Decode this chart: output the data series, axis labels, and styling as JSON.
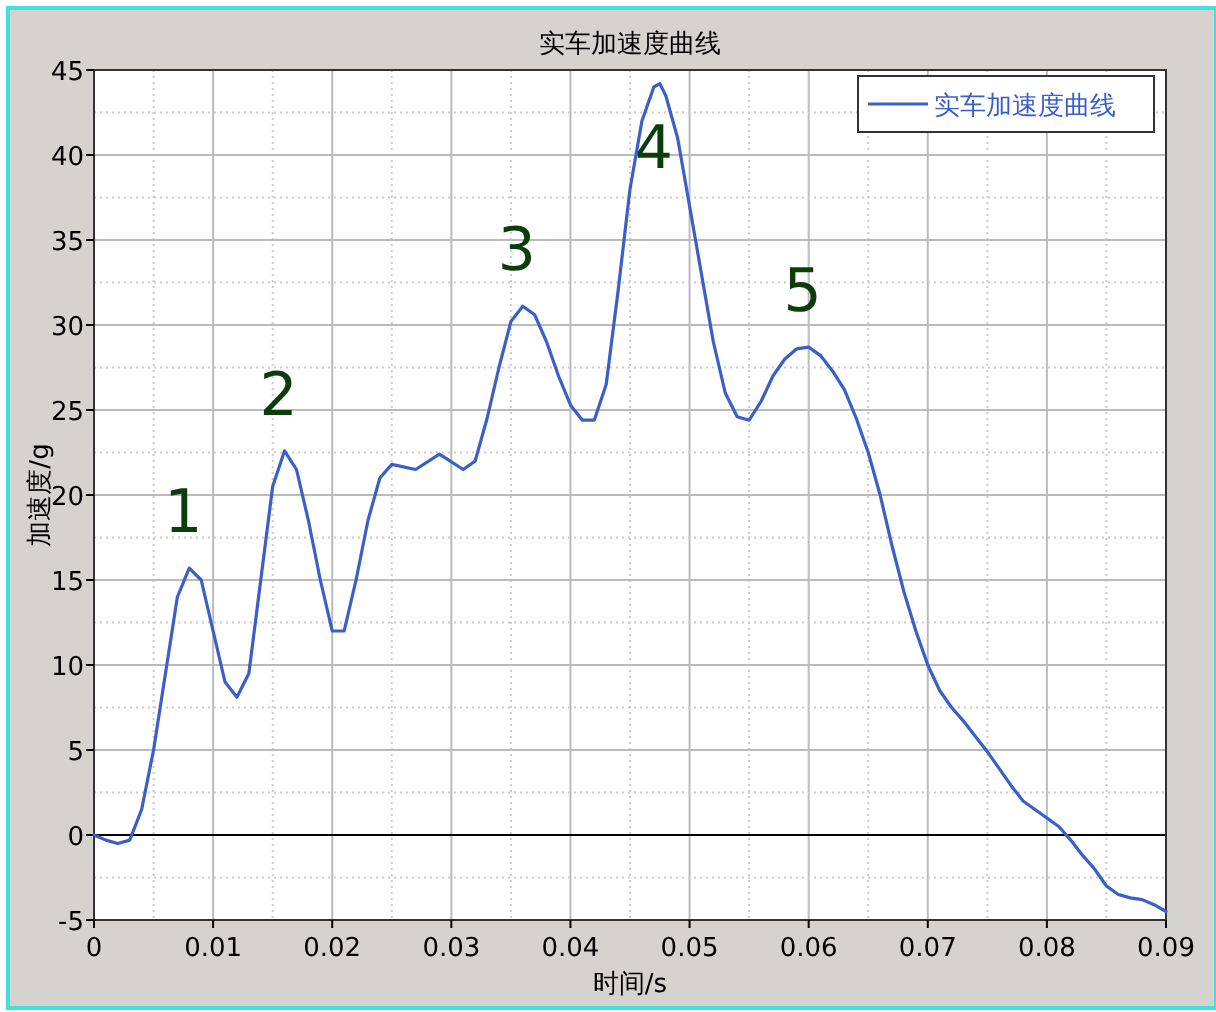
{
  "chart_data": {
    "type": "line",
    "title": "实车加速度曲线",
    "xlabel": "时间/s",
    "ylabel": "加速度/g",
    "xlim": [
      0,
      0.09
    ],
    "ylim": [
      -5,
      45
    ],
    "xticks": [
      0,
      0.01,
      0.02,
      0.03,
      0.04,
      0.05,
      0.06,
      0.07,
      0.08,
      0.09
    ],
    "yticks": [
      -5,
      0,
      5,
      10,
      15,
      20,
      25,
      30,
      35,
      40,
      45
    ],
    "grid": true,
    "legend": "top right",
    "ref_lines": [
      {
        "axis": "y",
        "value": 0,
        "color": "#000000"
      }
    ],
    "annotations": [
      {
        "text": "1",
        "x": 0.008,
        "y": 15.7
      },
      {
        "text": "2",
        "x": 0.016,
        "y": 22.6
      },
      {
        "text": "3",
        "x": 0.036,
        "y": 31.1
      },
      {
        "text": "4",
        "x": 0.0475,
        "y": 44.2
      },
      {
        "text": "5",
        "x": 0.06,
        "y": 28.7
      }
    ],
    "series": [
      {
        "name": "实车加速度曲线",
        "color": "#3a5fc8",
        "x": [
          0,
          0.001,
          0.002,
          0.003,
          0.004,
          0.005,
          0.006,
          0.007,
          0.008,
          0.009,
          0.01,
          0.011,
          0.012,
          0.013,
          0.014,
          0.015,
          0.016,
          0.017,
          0.018,
          0.019,
          0.02,
          0.021,
          0.022,
          0.023,
          0.024,
          0.025,
          0.027,
          0.029,
          0.031,
          0.032,
          0.033,
          0.034,
          0.035,
          0.036,
          0.037,
          0.038,
          0.039,
          0.04,
          0.041,
          0.042,
          0.043,
          0.044,
          0.045,
          0.046,
          0.047,
          0.0475,
          0.048,
          0.049,
          0.05,
          0.051,
          0.052,
          0.053,
          0.054,
          0.055,
          0.056,
          0.057,
          0.058,
          0.059,
          0.06,
          0.061,
          0.062,
          0.063,
          0.064,
          0.065,
          0.066,
          0.067,
          0.068,
          0.069,
          0.07,
          0.071,
          0.072,
          0.073,
          0.074,
          0.075,
          0.076,
          0.077,
          0.078,
          0.079,
          0.08,
          0.081,
          0.082,
          0.083,
          0.084,
          0.085,
          0.086,
          0.087,
          0.088,
          0.089,
          0.09
        ],
        "values": [
          0,
          -0.3,
          -0.5,
          -0.3,
          1.5,
          5,
          9.5,
          14,
          15.7,
          15,
          12,
          9,
          8.1,
          9.5,
          15,
          20.5,
          22.6,
          21.5,
          18.5,
          15,
          12,
          12,
          15,
          18.5,
          21,
          21.8,
          21.5,
          22.4,
          21.5,
          22,
          24.5,
          27.5,
          30.2,
          31.1,
          30.6,
          29,
          27,
          25.3,
          24.4,
          24.4,
          26.5,
          32,
          38,
          42,
          44,
          44.2,
          43.5,
          41,
          37,
          33,
          29,
          26,
          24.6,
          24.4,
          25.5,
          27,
          28,
          28.6,
          28.7,
          28.2,
          27.3,
          26.2,
          24.5,
          22.5,
          20,
          17,
          14.3,
          12,
          10,
          8.5,
          7.5,
          6.7,
          5.8,
          4.9,
          3.9,
          2.9,
          2,
          1.5,
          1,
          0.5,
          -0.3,
          -1.2,
          -2,
          -3,
          -3.5,
          -3.7,
          -3.8,
          -4.1,
          -4.5
        ]
      }
    ]
  }
}
